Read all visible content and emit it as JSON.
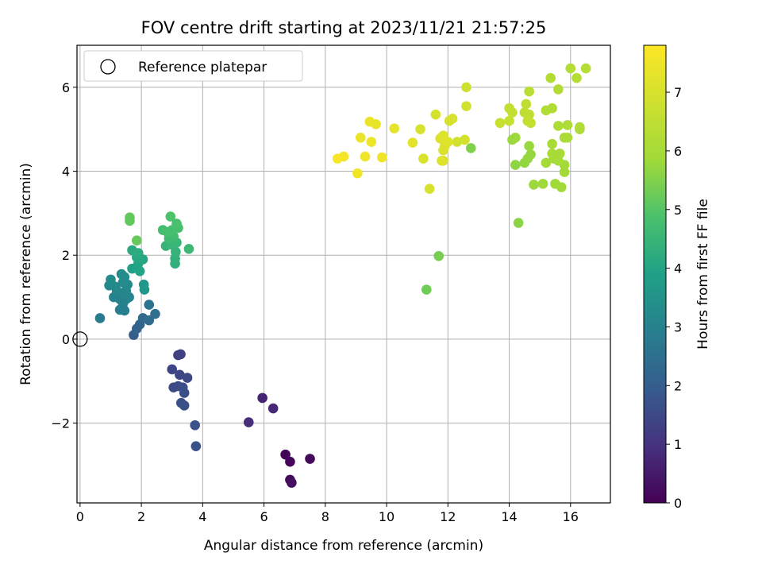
{
  "chart_data": {
    "type": "scatter",
    "title": "FOV centre drift starting at 2023/11/21 21:57:25",
    "xlabel": "Angular distance from reference (arcmin)",
    "ylabel": "Rotation from reference (arcmin)",
    "xlim": [
      -0.1,
      17.3
    ],
    "ylim": [
      -3.9,
      7.0
    ],
    "xticks": [
      0,
      2,
      4,
      6,
      8,
      10,
      12,
      14,
      16
    ],
    "yticks": [
      -2,
      0,
      2,
      4,
      6
    ],
    "grid": true,
    "legend": {
      "position": "upper-left",
      "entries": [
        "Reference platepar"
      ]
    },
    "reference_point": {
      "x": 0,
      "y": 0,
      "marker": "hollow-circle"
    },
    "colorbar": {
      "label": "Hours from first FF file",
      "colormap": "viridis",
      "range": [
        0,
        7.8
      ],
      "ticks": [
        0,
        1,
        2,
        3,
        4,
        5,
        6,
        7
      ]
    },
    "points": [
      {
        "x": 6.7,
        "y": -2.75,
        "h": 0.05
      },
      {
        "x": 6.85,
        "y": -2.92,
        "h": 0.1
      },
      {
        "x": 7.5,
        "y": -2.85,
        "h": 0.15
      },
      {
        "x": 6.85,
        "y": -3.35,
        "h": 0.2
      },
      {
        "x": 6.9,
        "y": -3.42,
        "h": 0.25
      },
      {
        "x": 5.95,
        "y": -1.4,
        "h": 0.7
      },
      {
        "x": 6.3,
        "y": -1.65,
        "h": 0.8
      },
      {
        "x": 5.5,
        "y": -1.98,
        "h": 0.9
      },
      {
        "x": 3.2,
        "y": -0.38,
        "h": 1.3
      },
      {
        "x": 3.28,
        "y": -0.36,
        "h": 1.32
      },
      {
        "x": 3.0,
        "y": -0.72,
        "h": 1.4
      },
      {
        "x": 3.25,
        "y": -0.85,
        "h": 1.45
      },
      {
        "x": 3.5,
        "y": -0.92,
        "h": 1.5
      },
      {
        "x": 3.05,
        "y": -1.15,
        "h": 1.55
      },
      {
        "x": 3.2,
        "y": -1.12,
        "h": 1.58
      },
      {
        "x": 3.35,
        "y": -1.15,
        "h": 1.6
      },
      {
        "x": 3.4,
        "y": -1.28,
        "h": 1.62
      },
      {
        "x": 3.3,
        "y": -1.52,
        "h": 1.65
      },
      {
        "x": 3.4,
        "y": -1.58,
        "h": 1.68
      },
      {
        "x": 3.75,
        "y": -2.05,
        "h": 1.72
      },
      {
        "x": 3.78,
        "y": -2.55,
        "h": 1.75
      },
      {
        "x": 1.75,
        "y": 0.1,
        "h": 2.0
      },
      {
        "x": 1.85,
        "y": 0.25,
        "h": 2.1
      },
      {
        "x": 1.95,
        "y": 0.35,
        "h": 2.2
      },
      {
        "x": 2.05,
        "y": 0.5,
        "h": 2.3
      },
      {
        "x": 2.25,
        "y": 0.45,
        "h": 2.4
      },
      {
        "x": 2.45,
        "y": 0.6,
        "h": 2.5
      },
      {
        "x": 2.25,
        "y": 0.82,
        "h": 2.6
      },
      {
        "x": 0.65,
        "y": 0.5,
        "h": 2.8
      },
      {
        "x": 1.3,
        "y": 0.7,
        "h": 2.9
      },
      {
        "x": 1.45,
        "y": 0.68,
        "h": 2.92
      },
      {
        "x": 1.4,
        "y": 0.85,
        "h": 2.95
      },
      {
        "x": 1.1,
        "y": 1.0,
        "h": 3.0
      },
      {
        "x": 1.3,
        "y": 0.95,
        "h": 3.02
      },
      {
        "x": 1.5,
        "y": 0.95,
        "h": 3.05
      },
      {
        "x": 1.6,
        "y": 1.0,
        "h": 3.08
      },
      {
        "x": 1.2,
        "y": 1.15,
        "h": 3.1
      },
      {
        "x": 1.35,
        "y": 1.1,
        "h": 3.12
      },
      {
        "x": 1.5,
        "y": 1.15,
        "h": 3.15
      },
      {
        "x": 1.55,
        "y": 1.3,
        "h": 3.18
      },
      {
        "x": 0.95,
        "y": 1.28,
        "h": 3.2
      },
      {
        "x": 1.15,
        "y": 1.25,
        "h": 3.22
      },
      {
        "x": 1.4,
        "y": 1.35,
        "h": 3.25
      },
      {
        "x": 1.0,
        "y": 1.42,
        "h": 3.28
      },
      {
        "x": 1.35,
        "y": 1.55,
        "h": 3.3
      },
      {
        "x": 1.45,
        "y": 1.48,
        "h": 3.32
      },
      {
        "x": 2.08,
        "y": 1.3,
        "h": 3.6
      },
      {
        "x": 2.1,
        "y": 1.18,
        "h": 3.65
      },
      {
        "x": 1.7,
        "y": 1.68,
        "h": 3.9
      },
      {
        "x": 1.95,
        "y": 1.62,
        "h": 3.95
      },
      {
        "x": 1.9,
        "y": 1.8,
        "h": 4.0
      },
      {
        "x": 2.05,
        "y": 1.9,
        "h": 4.05
      },
      {
        "x": 1.85,
        "y": 1.95,
        "h": 4.1
      },
      {
        "x": 1.7,
        "y": 2.12,
        "h": 4.15
      },
      {
        "x": 1.9,
        "y": 2.05,
        "h": 4.2
      },
      {
        "x": 3.1,
        "y": 1.8,
        "h": 4.3
      },
      {
        "x": 3.1,
        "y": 1.92,
        "h": 4.35
      },
      {
        "x": 3.12,
        "y": 2.08,
        "h": 4.4
      },
      {
        "x": 2.8,
        "y": 2.22,
        "h": 4.45
      },
      {
        "x": 3.0,
        "y": 2.25,
        "h": 4.5
      },
      {
        "x": 3.15,
        "y": 2.3,
        "h": 4.55
      },
      {
        "x": 3.55,
        "y": 2.15,
        "h": 4.6
      },
      {
        "x": 2.9,
        "y": 2.4,
        "h": 4.65
      },
      {
        "x": 3.05,
        "y": 2.45,
        "h": 4.7
      },
      {
        "x": 2.7,
        "y": 2.6,
        "h": 4.75
      },
      {
        "x": 2.85,
        "y": 2.55,
        "h": 4.78
      },
      {
        "x": 3.0,
        "y": 2.6,
        "h": 4.8
      },
      {
        "x": 3.2,
        "y": 2.65,
        "h": 4.82
      },
      {
        "x": 3.15,
        "y": 2.75,
        "h": 4.85
      },
      {
        "x": 2.95,
        "y": 2.92,
        "h": 4.9
      },
      {
        "x": 1.62,
        "y": 2.82,
        "h": 5.1
      },
      {
        "x": 1.62,
        "y": 2.9,
        "h": 5.15
      },
      {
        "x": 1.85,
        "y": 2.35,
        "h": 5.2
      },
      {
        "x": 11.3,
        "y": 1.18,
        "h": 5.3
      },
      {
        "x": 11.7,
        "y": 1.98,
        "h": 5.4
      },
      {
        "x": 12.75,
        "y": 4.55,
        "h": 5.5
      },
      {
        "x": 14.3,
        "y": 2.77,
        "h": 5.6
      },
      {
        "x": 14.2,
        "y": 4.15,
        "h": 5.65
      },
      {
        "x": 14.5,
        "y": 4.2,
        "h": 5.7
      },
      {
        "x": 14.6,
        "y": 4.3,
        "h": 5.72
      },
      {
        "x": 14.7,
        "y": 4.4,
        "h": 5.74
      },
      {
        "x": 14.65,
        "y": 4.6,
        "h": 5.76
      },
      {
        "x": 14.1,
        "y": 4.75,
        "h": 5.78
      },
      {
        "x": 14.2,
        "y": 4.8,
        "h": 5.8
      },
      {
        "x": 14.8,
        "y": 3.68,
        "h": 5.82
      },
      {
        "x": 15.1,
        "y": 3.7,
        "h": 5.84
      },
      {
        "x": 15.5,
        "y": 3.7,
        "h": 5.86
      },
      {
        "x": 15.7,
        "y": 3.62,
        "h": 5.88
      },
      {
        "x": 15.8,
        "y": 3.98,
        "h": 5.9
      },
      {
        "x": 15.8,
        "y": 4.15,
        "h": 5.92
      },
      {
        "x": 15.2,
        "y": 4.2,
        "h": 5.94
      },
      {
        "x": 15.45,
        "y": 4.3,
        "h": 5.96
      },
      {
        "x": 15.6,
        "y": 4.25,
        "h": 5.98
      },
      {
        "x": 15.4,
        "y": 4.42,
        "h": 6.0
      },
      {
        "x": 15.65,
        "y": 4.42,
        "h": 6.02
      },
      {
        "x": 15.4,
        "y": 4.65,
        "h": 6.04
      },
      {
        "x": 15.8,
        "y": 4.8,
        "h": 6.06
      },
      {
        "x": 15.9,
        "y": 4.8,
        "h": 6.08
      },
      {
        "x": 15.6,
        "y": 5.08,
        "h": 6.1
      },
      {
        "x": 15.9,
        "y": 5.1,
        "h": 6.12
      },
      {
        "x": 16.3,
        "y": 5.05,
        "h": 6.14
      },
      {
        "x": 16.3,
        "y": 5.0,
        "h": 6.16
      },
      {
        "x": 15.2,
        "y": 5.45,
        "h": 6.18
      },
      {
        "x": 15.4,
        "y": 5.5,
        "h": 6.2
      },
      {
        "x": 15.6,
        "y": 5.95,
        "h": 6.22
      },
      {
        "x": 15.35,
        "y": 6.22,
        "h": 6.24
      },
      {
        "x": 16.2,
        "y": 6.22,
        "h": 6.26
      },
      {
        "x": 16.0,
        "y": 6.45,
        "h": 6.28
      },
      {
        "x": 16.5,
        "y": 6.45,
        "h": 6.3
      },
      {
        "x": 14.65,
        "y": 5.9,
        "h": 6.4
      },
      {
        "x": 14.55,
        "y": 5.6,
        "h": 6.45
      },
      {
        "x": 14.5,
        "y": 5.4,
        "h": 6.5
      },
      {
        "x": 14.65,
        "y": 5.35,
        "h": 6.52
      },
      {
        "x": 14.0,
        "y": 5.5,
        "h": 6.55
      },
      {
        "x": 14.1,
        "y": 5.4,
        "h": 6.58
      },
      {
        "x": 14.6,
        "y": 5.2,
        "h": 6.6
      },
      {
        "x": 14.7,
        "y": 5.15,
        "h": 6.62
      },
      {
        "x": 13.7,
        "y": 5.15,
        "h": 6.65
      },
      {
        "x": 14.0,
        "y": 5.2,
        "h": 6.68
      },
      {
        "x": 12.6,
        "y": 6.0,
        "h": 6.8
      },
      {
        "x": 12.6,
        "y": 5.55,
        "h": 6.85
      },
      {
        "x": 12.3,
        "y": 4.7,
        "h": 6.9
      },
      {
        "x": 12.55,
        "y": 4.75,
        "h": 6.92
      },
      {
        "x": 11.6,
        "y": 5.35,
        "h": 6.95
      },
      {
        "x": 12.05,
        "y": 5.2,
        "h": 6.97
      },
      {
        "x": 12.15,
        "y": 5.25,
        "h": 6.99
      },
      {
        "x": 11.1,
        "y": 5.0,
        "h": 7.0
      },
      {
        "x": 11.4,
        "y": 3.58,
        "h": 7.02
      },
      {
        "x": 11.2,
        "y": 4.3,
        "h": 7.04
      },
      {
        "x": 11.8,
        "y": 4.25,
        "h": 7.06
      },
      {
        "x": 11.85,
        "y": 4.5,
        "h": 7.08
      },
      {
        "x": 11.9,
        "y": 4.6,
        "h": 7.1
      },
      {
        "x": 11.75,
        "y": 4.78,
        "h": 7.12
      },
      {
        "x": 11.85,
        "y": 4.85,
        "h": 7.14
      },
      {
        "x": 12.0,
        "y": 4.7,
        "h": 7.16
      },
      {
        "x": 11.85,
        "y": 4.25,
        "h": 7.18
      },
      {
        "x": 10.85,
        "y": 4.68,
        "h": 7.25
      },
      {
        "x": 10.25,
        "y": 5.02,
        "h": 7.3
      },
      {
        "x": 9.65,
        "y": 5.12,
        "h": 7.35
      },
      {
        "x": 9.45,
        "y": 5.18,
        "h": 7.4
      },
      {
        "x": 9.15,
        "y": 4.8,
        "h": 7.42
      },
      {
        "x": 9.5,
        "y": 4.7,
        "h": 7.45
      },
      {
        "x": 9.85,
        "y": 4.33,
        "h": 7.48
      },
      {
        "x": 9.3,
        "y": 4.35,
        "h": 7.5
      },
      {
        "x": 9.05,
        "y": 3.95,
        "h": 7.55
      },
      {
        "x": 8.6,
        "y": 4.35,
        "h": 7.6
      },
      {
        "x": 8.4,
        "y": 4.3,
        "h": 7.65
      }
    ]
  }
}
